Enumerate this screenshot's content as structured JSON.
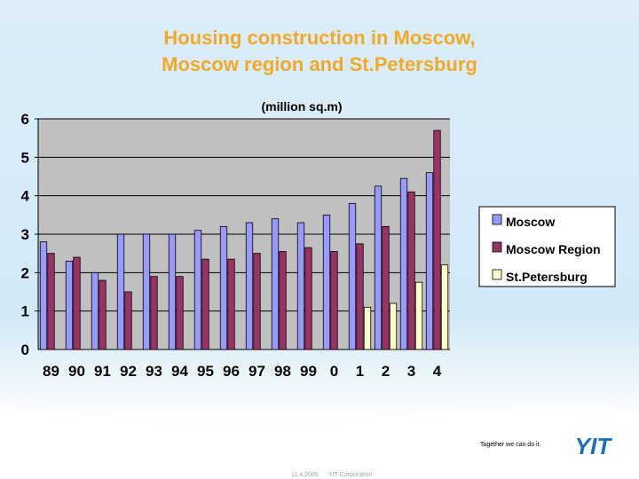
{
  "slide": {
    "title_line1": "Housing construction in Moscow,",
    "title_line2": "Moscow region and St.Petersburg",
    "tagline": "Together we can do it.",
    "date": "11.4.2005",
    "company": "YIT Corporation",
    "logo_text": "YIT",
    "colors": {
      "title": "#f0a92a",
      "logo": "#1b6fb3",
      "panel": "#ddeef9"
    }
  },
  "chart_data": {
    "type": "bar",
    "title": "(million sq.m)",
    "categories": [
      "89",
      "90",
      "91",
      "92",
      "93",
      "94",
      "95",
      "96",
      "97",
      "98",
      "99",
      "0",
      "1",
      "2",
      "3",
      "4"
    ],
    "ylim": [
      0,
      6
    ],
    "yticks": [
      0,
      1,
      2,
      3,
      4,
      5,
      6
    ],
    "grid": true,
    "legend_position": "right",
    "series": [
      {
        "name": "Moscow",
        "color": "#9999ff",
        "values": [
          2.8,
          2.3,
          2.0,
          3.0,
          3.0,
          3.0,
          3.1,
          3.2,
          3.3,
          3.4,
          3.3,
          3.5,
          3.8,
          4.25,
          4.45,
          4.6
        ]
      },
      {
        "name": "Moscow Region",
        "color": "#993366",
        "values": [
          2.5,
          2.4,
          1.8,
          1.5,
          1.9,
          1.9,
          2.35,
          2.35,
          2.5,
          2.55,
          2.65,
          2.55,
          2.75,
          3.2,
          4.1,
          5.7
        ]
      },
      {
        "name": "St.Petersburg",
        "color": "#ffffcc",
        "values": [
          null,
          null,
          null,
          null,
          null,
          null,
          null,
          null,
          null,
          null,
          null,
          null,
          1.1,
          1.2,
          1.75,
          2.2
        ]
      }
    ]
  }
}
